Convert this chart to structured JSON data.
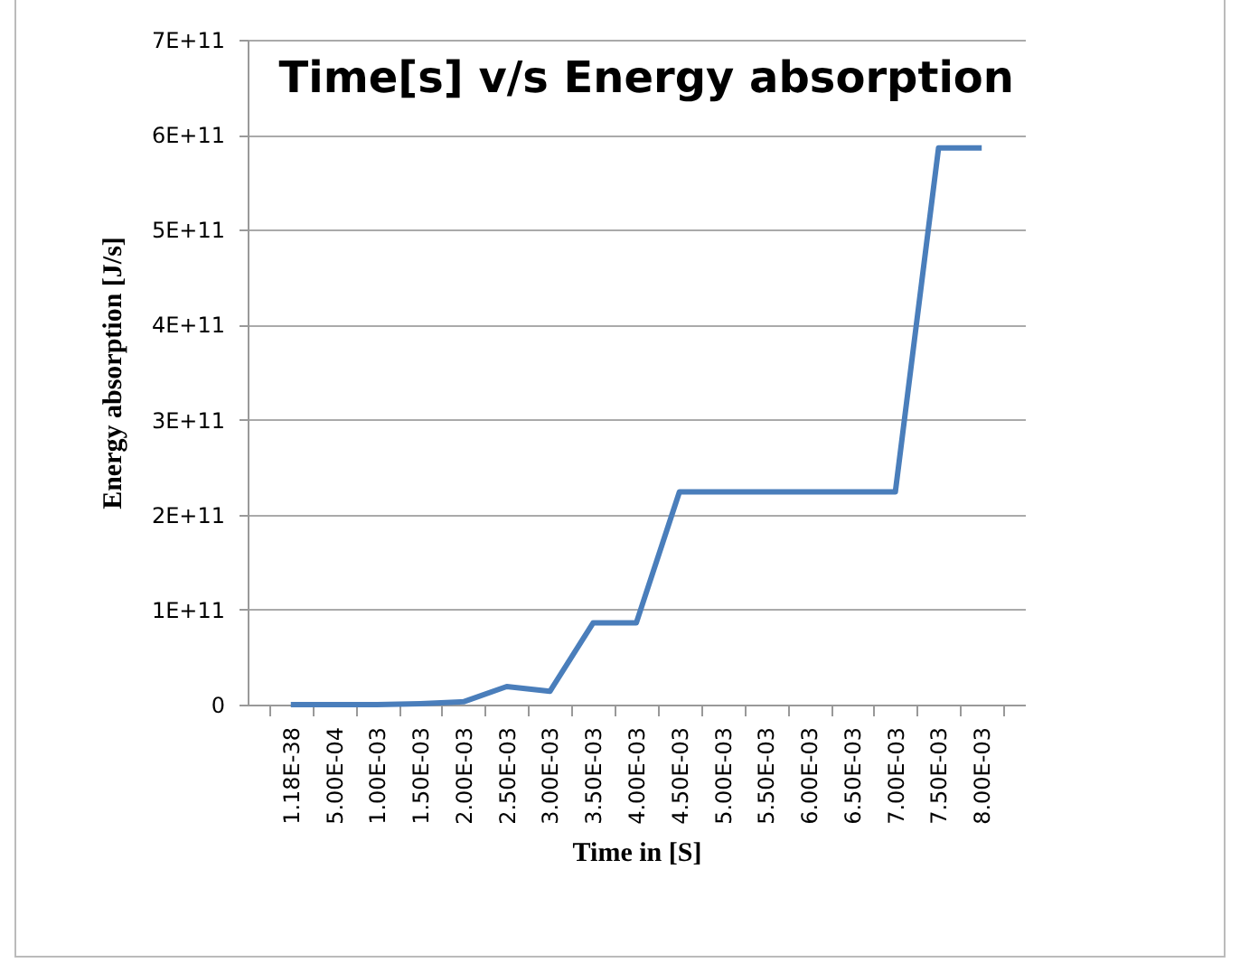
{
  "chart_data": {
    "type": "line",
    "title": "Time[s] v/s Energy absorption",
    "xlabel": "Time in  [S]",
    "ylabel": "Energy absorption  [J/s]",
    "categories": [
      "1.18E-38",
      "5.00E-04",
      "1.00E-03",
      "1.50E-03",
      "2.00E-03",
      "2.50E-03",
      "3.00E-03",
      "3.50E-03",
      "4.00E-03",
      "4.50E-03",
      "5.00E-03",
      "5.50E-03",
      "6.00E-03",
      "6.50E-03",
      "7.00E-03",
      "7.50E-03",
      "8.00E-03"
    ],
    "series": [
      {
        "color": "#4a7ebb",
        "values": [
          0,
          0,
          0,
          1000000000.0,
          3000000000.0,
          19000000000.0,
          14000000000.0,
          86000000000.0,
          86000000000.0,
          224000000000.0,
          224000000000.0,
          224000000000.0,
          224000000000.0,
          224000000000.0,
          224000000000.0,
          586000000000.0,
          586000000000.0
        ]
      }
    ],
    "ylim": [
      0,
      700000000000.0
    ],
    "yticks": [
      0,
      {
        "value": 100000000000.0,
        "label": "1E+11"
      },
      {
        "value": 200000000000.0,
        "label": "2E+11"
      },
      {
        "value": 300000000000.0,
        "label": "3E+11"
      },
      {
        "value": 400000000000.0,
        "label": "4E+11"
      },
      {
        "value": 500000000000.0,
        "label": "5E+11"
      },
      {
        "value": 600000000000.0,
        "label": "6E+11"
      },
      {
        "value": 700000000000.0,
        "label": "7E+11"
      }
    ],
    "grid": "y",
    "legend": false,
    "marker": "none",
    "line_style": "solid"
  }
}
